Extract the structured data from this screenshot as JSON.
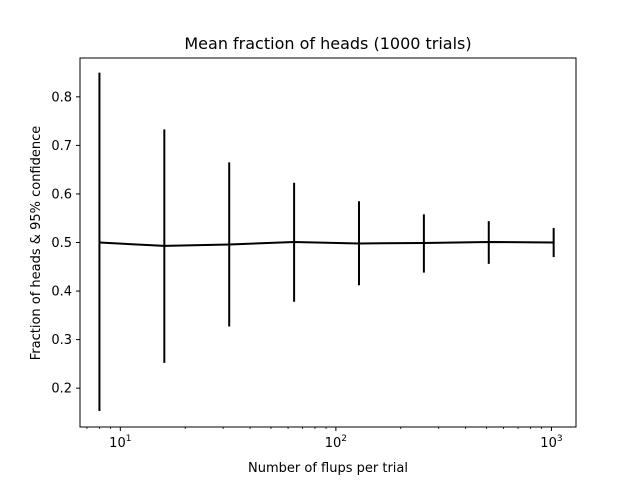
{
  "chart_data": {
    "type": "line",
    "title": "Mean fraction of heads (1000 trials)",
    "xlabel": "Number of flups per trial",
    "ylabel": "Fraction of heads & 95% confidence",
    "xscale": "log",
    "xlim": [
      6.5,
      1300
    ],
    "ylim": [
      0.12,
      0.88
    ],
    "grid": false,
    "color": "#000000",
    "series": [
      {
        "name": "mean fraction of heads",
        "x": [
          8,
          16,
          32,
          64,
          128,
          256,
          512,
          1024
        ],
        "y": [
          0.5,
          0.493,
          0.496,
          0.501,
          0.498,
          0.499,
          0.501,
          0.5
        ],
        "err_low": [
          0.153,
          0.252,
          0.327,
          0.378,
          0.412,
          0.438,
          0.456,
          0.47
        ],
        "err_high": [
          0.85,
          0.733,
          0.665,
          0.623,
          0.585,
          0.558,
          0.544,
          0.53
        ]
      }
    ],
    "yticks": [
      {
        "value": 0.2,
        "label": "0.2"
      },
      {
        "value": 0.3,
        "label": "0.3"
      },
      {
        "value": 0.4,
        "label": "0.4"
      },
      {
        "value": 0.5,
        "label": "0.5"
      },
      {
        "value": 0.6,
        "label": "0.6"
      },
      {
        "value": 0.7,
        "label": "0.7"
      },
      {
        "value": 0.8,
        "label": "0.8"
      }
    ],
    "xticks_major": [
      {
        "value": 10,
        "base": "10",
        "exp": "1"
      },
      {
        "value": 100,
        "base": "10",
        "exp": "2"
      },
      {
        "value": 1000,
        "base": "10",
        "exp": "3"
      }
    ]
  }
}
